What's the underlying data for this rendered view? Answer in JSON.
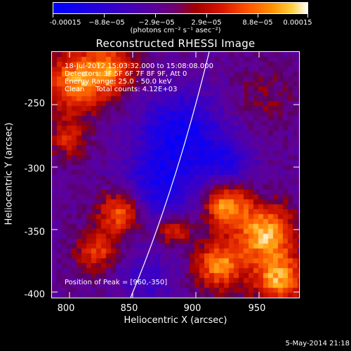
{
  "colorbar": {
    "tick_labels": [
      "-0.00015",
      "−8.8e−05",
      "−2.9e−05",
      "2.9e−05",
      "8.8e−05",
      "0.00015"
    ],
    "units": "(photons cm⁻² s⁻¹ asec⁻²)"
  },
  "title": "Reconstructed RHESSI Image",
  "info": {
    "line1": "18-Jul-2012 15:03:32.000 to 15:08:08.000",
    "line2": "Detectors: 3F 5F 6F 7F 8F 9F, Att 0",
    "line3": "Energy Range: 25.0 - 50.0 keV",
    "line4": "Clean     Total counts: 4.12E+03"
  },
  "peak_text": "Position of Peak = [960,-350]",
  "axes": {
    "xlabel": "Heliocentric X (arcsec)",
    "ylabel": "Heliocentric Y (arcsec)",
    "x_ticks": [
      "800",
      "850",
      "900",
      "950"
    ],
    "y_ticks": [
      "-250",
      "-300",
      "-350",
      "-400"
    ],
    "x_range": [
      789,
      985
    ],
    "y_range": [
      -402,
      -207
    ]
  },
  "footer": "5-May-2014 21:18",
  "colors": {
    "background": "#000000",
    "limb": "#ffffff"
  }
}
